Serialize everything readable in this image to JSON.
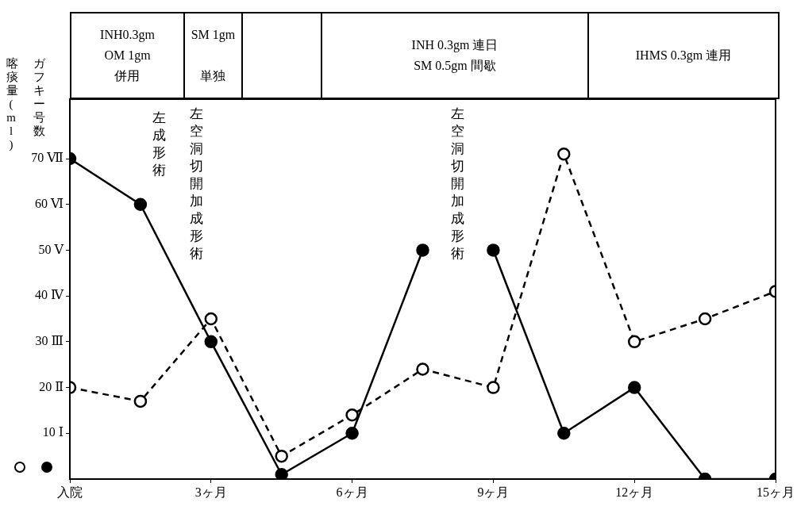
{
  "chart_data": {
    "type": "line",
    "ylabel": "喀痰量(ml) ガフキー号数",
    "xlim": [
      0,
      15
    ],
    "xticks": [
      {
        "value": 0,
        "label": "入院"
      },
      {
        "value": 3,
        "label": "3ヶ月"
      },
      {
        "value": 6,
        "label": "6ヶ月"
      },
      {
        "value": 9,
        "label": "9ヶ月"
      },
      {
        "value": 12,
        "label": "12ヶ月"
      },
      {
        "value": 15,
        "label": "15ヶ月"
      }
    ],
    "ylim": [
      0,
      83
    ],
    "yticks": [
      {
        "value": 10,
        "label": "10 Ⅰ"
      },
      {
        "value": 20,
        "label": "20 Ⅱ"
      },
      {
        "value": 30,
        "label": "30 Ⅲ"
      },
      {
        "value": 40,
        "label": "40 Ⅳ"
      },
      {
        "value": 50,
        "label": "50 Ⅴ"
      },
      {
        "value": 60,
        "label": "60 Ⅵ"
      },
      {
        "value": 70,
        "label": "70 Ⅶ"
      }
    ],
    "grid": false,
    "legend": false,
    "marker": "circle",
    "series": [
      {
        "color": "#000000",
        "line_style": "dashed",
        "x": [
          0,
          1.5,
          3,
          4.5,
          6,
          7.5,
          9,
          10.5,
          12,
          13.5,
          15
        ],
        "values": [
          20,
          17,
          35,
          5,
          14,
          24,
          20,
          71,
          30,
          35,
          41
        ]
      },
      {
        "color": "#000000",
        "line_style": "solid",
        "x": [
          0,
          1.5,
          3,
          4.5,
          6,
          7.5,
          8.25,
          9,
          10.5,
          12,
          13.5,
          15
        ],
        "values": [
          70,
          60,
          30,
          1,
          10,
          50,
          null,
          50,
          10,
          20,
          0,
          0
        ]
      }
    ],
    "annotations": [
      "INH0.3gm\nOM 1gm\n併用",
      "SM 1gm\n\n単独",
      "INH 0.3gm 連日\nSM 0.5gm 間歇",
      "IHMS 0.3gm 連用",
      "左成形術",
      "左空洞切開加成形術",
      "左空洞切開加成形術"
    ]
  }
}
